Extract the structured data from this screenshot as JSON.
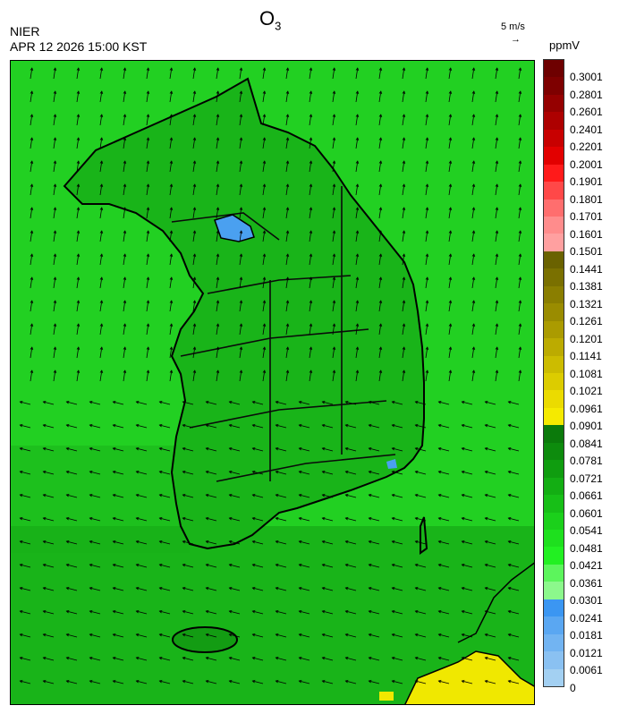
{
  "header": {
    "agency": "NIER",
    "datetime": "APR 12 2026 15:00 KST",
    "title_main": "O",
    "title_sub": "3",
    "wind_reference": "5 m/s",
    "wind_arrow_glyph": "→",
    "unit": "ppmV"
  },
  "colorbar": {
    "labels": [
      "0.3001",
      "0.2801",
      "0.2601",
      "0.2401",
      "0.2201",
      "0.2001",
      "0.1901",
      "0.1801",
      "0.1701",
      "0.1601",
      "0.1501",
      "0.1441",
      "0.1381",
      "0.1321",
      "0.1261",
      "0.1201",
      "0.1141",
      "0.1081",
      "0.1021",
      "0.0961",
      "0.0901",
      "0.0841",
      "0.0781",
      "0.0721",
      "0.0661",
      "0.0601",
      "0.0541",
      "0.0481",
      "0.0421",
      "0.0361",
      "0.0301",
      "0.0241",
      "0.0181",
      "0.0121",
      "0.0061",
      "0"
    ],
    "colors": [
      "#6e0000",
      "#7e0000",
      "#950000",
      "#ad0000",
      "#c80000",
      "#e20000",
      "#ff1a1a",
      "#ff4848",
      "#ff6e6e",
      "#ff8c8c",
      "#ffa0a0",
      "#6a6200",
      "#7a7000",
      "#8a7e00",
      "#9a8c00",
      "#ab9b00",
      "#bcab00",
      "#ccbc00",
      "#dccc00",
      "#ebdb00",
      "#f5ea00",
      "#0b7a0b",
      "#0d8b0d",
      "#0f9d0f",
      "#13ae13",
      "#17bf17",
      "#1bd01b",
      "#1ee01e",
      "#22f022",
      "#5cf55c",
      "#8cf88c",
      "#3b96f2",
      "#5aa7f2",
      "#72b4f2",
      "#8ac1f2",
      "#a3d0f2"
    ]
  },
  "map": {
    "field_color_dominant": "#22d022",
    "field_color_low": "#4aa0f0",
    "field_color_high": "#f0e800"
  }
}
